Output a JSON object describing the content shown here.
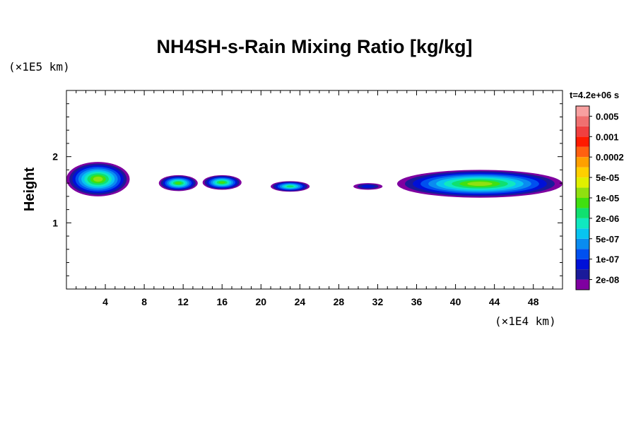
{
  "chart_data": {
    "type": "heatmap",
    "title": "NH4SH-s-Rain Mixing Ratio [kg/kg]",
    "ylabel": "Height",
    "x_unit": "(×1E4 km)",
    "y_unit": "(×1E5 km)",
    "xlim": [
      0,
      51
    ],
    "ylim": [
      0,
      3
    ],
    "x_ticks": [
      4,
      8,
      12,
      16,
      20,
      24,
      28,
      32,
      36,
      40,
      44,
      48
    ],
    "y_ticks": [
      1,
      2
    ],
    "time_label": "t=4.2e+06 s",
    "colorbar": {
      "colors": [
        "#7f00a0",
        "#1a1a9a",
        "#0010d8",
        "#0050f0",
        "#0a8cf0",
        "#08c4f0",
        "#10e8c0",
        "#10e070",
        "#40e010",
        "#90e010",
        "#e0f000",
        "#ffd000",
        "#ffa000",
        "#ff6010",
        "#ff1a00",
        "#f04040",
        "#f07070",
        "#f8a0a0"
      ],
      "labels": [
        "2e-08",
        "1e-07",
        "5e-07",
        "2e-06",
        "1e-05",
        "5e-05",
        "0.0002",
        "0.001",
        "0.005"
      ]
    },
    "features": [
      {
        "x": [
          0,
          6.5
        ],
        "y": [
          1.4,
          1.92
        ],
        "level": 9
      },
      {
        "x": [
          9.5,
          13.5
        ],
        "y": [
          1.48,
          1.72
        ],
        "level": 8
      },
      {
        "x": [
          14,
          18
        ],
        "y": [
          1.5,
          1.72
        ],
        "level": 8
      },
      {
        "x": [
          21,
          25
        ],
        "y": [
          1.47,
          1.63
        ],
        "level": 7
      },
      {
        "x": [
          29.5,
          32.5
        ],
        "y": [
          1.5,
          1.6
        ],
        "level": 2
      },
      {
        "x": [
          34,
          51
        ],
        "y": [
          1.38,
          1.8
        ],
        "level": 9
      }
    ]
  }
}
